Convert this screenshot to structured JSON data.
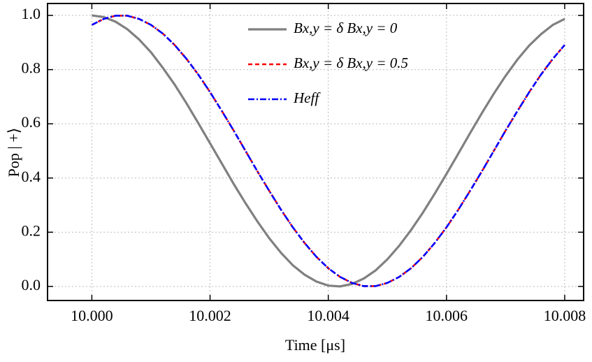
{
  "chart_data": {
    "type": "line",
    "xlabel": "Time [μs]",
    "ylabel": "Pop | +⟩",
    "x": [
      10.0,
      10.0002,
      10.0004,
      10.0006,
      10.0008,
      10.001,
      10.0012,
      10.0014,
      10.0016,
      10.0018,
      10.002,
      10.0022,
      10.0024,
      10.0026,
      10.0028,
      10.003,
      10.0032,
      10.0034,
      10.0036,
      10.0038,
      10.004,
      10.0042,
      10.0044,
      10.0046,
      10.0048,
      10.005,
      10.0052,
      10.0054,
      10.0056,
      10.0058,
      10.006,
      10.0062,
      10.0064,
      10.0066,
      10.0068,
      10.007,
      10.0072,
      10.0074,
      10.0076,
      10.0078,
      10.008
    ],
    "series": [
      {
        "name": "Bx,y = δ Bx,y = 0",
        "color": "#808080",
        "dash": "solid",
        "values": [
          1.0,
          0.994,
          0.977,
          0.949,
          0.911,
          0.864,
          0.807,
          0.745,
          0.676,
          0.603,
          0.528,
          0.453,
          0.378,
          0.307,
          0.24,
          0.178,
          0.124,
          0.078,
          0.043,
          0.018,
          0.003,
          0.0,
          0.009,
          0.029,
          0.059,
          0.1,
          0.15,
          0.208,
          0.272,
          0.342,
          0.415,
          0.49,
          0.566,
          0.64,
          0.711,
          0.777,
          0.837,
          0.889,
          0.931,
          0.965,
          0.987
        ]
      },
      {
        "name": "Bx,y = δ Bx,y = 0.5",
        "color": "#ff0000",
        "dash": "dashed",
        "values": [
          0.965,
          0.987,
          0.999,
          0.999,
          0.987,
          0.965,
          0.933,
          0.891,
          0.84,
          0.782,
          0.717,
          0.647,
          0.575,
          0.5,
          0.425,
          0.353,
          0.283,
          0.218,
          0.16,
          0.109,
          0.067,
          0.035,
          0.013,
          0.001,
          0.001,
          0.013,
          0.035,
          0.067,
          0.109,
          0.16,
          0.218,
          0.283,
          0.353,
          0.425,
          0.5,
          0.575,
          0.647,
          0.717,
          0.782,
          0.84,
          0.891
        ]
      },
      {
        "name": "Heff",
        "color": "#0000ff",
        "dash": "dashdot",
        "values": [
          0.965,
          0.987,
          0.999,
          0.999,
          0.987,
          0.965,
          0.933,
          0.891,
          0.84,
          0.782,
          0.717,
          0.647,
          0.575,
          0.5,
          0.425,
          0.353,
          0.283,
          0.218,
          0.16,
          0.109,
          0.067,
          0.035,
          0.013,
          0.001,
          0.001,
          0.013,
          0.035,
          0.067,
          0.109,
          0.16,
          0.218,
          0.283,
          0.353,
          0.425,
          0.5,
          0.575,
          0.647,
          0.717,
          0.782,
          0.84,
          0.891
        ]
      }
    ],
    "xlim": [
      9.99925,
      10.00832
    ],
    "ylim": [
      -0.052,
      1.044
    ],
    "xticks": [
      {
        "value": 10.0,
        "label": "10.000"
      },
      {
        "value": 10.002,
        "label": "10.002"
      },
      {
        "value": 10.004,
        "label": "10.004"
      },
      {
        "value": 10.006,
        "label": "10.006"
      },
      {
        "value": 10.008,
        "label": "10.008"
      }
    ],
    "yticks": [
      {
        "value": 0,
        "label": "0.0"
      },
      0.2,
      0.4,
      0.6,
      0.8,
      {
        "value": 1,
        "label": "1.0"
      }
    ],
    "grid": true,
    "legend": "top-center"
  }
}
